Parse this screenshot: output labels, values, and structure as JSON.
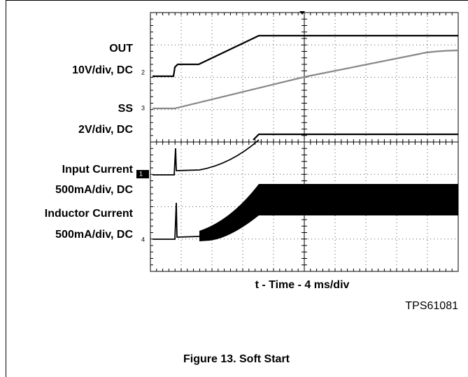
{
  "labels": {
    "out": "OUT",
    "out_scale": "10V/div, DC",
    "ss": "SS",
    "ss_scale": "2V/div, DC",
    "input": "Input Current",
    "input_scale": "500mA/div, DC",
    "inductor": "Inductor Current",
    "inductor_scale": "500mA/div, DC"
  },
  "markers": [
    "2",
    "3",
    "1",
    "4"
  ],
  "x_label": "t - Time - 4 ms/div",
  "part": "TPS61081",
  "caption": "Figure 13. Soft Start"
}
